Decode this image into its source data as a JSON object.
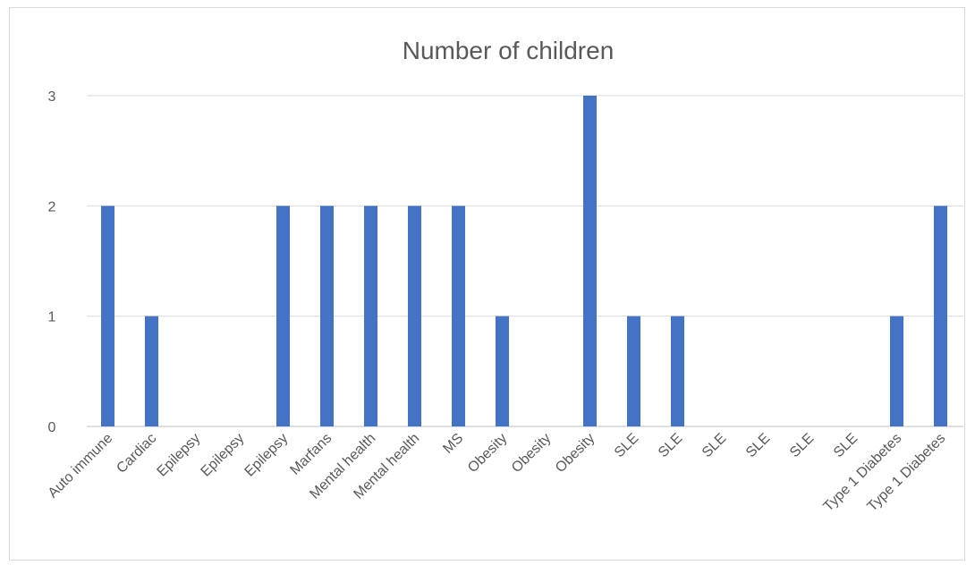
{
  "chart_data": {
    "type": "bar",
    "title": "Number of children",
    "xlabel": "",
    "ylabel": "",
    "categories": [
      "Auto immune",
      "Cardiac",
      "Epilepsy",
      "Epilepsy",
      "Epilepsy",
      "Marfans",
      "Mental health",
      "Mental health",
      "MS",
      "Obesity",
      "Obesity",
      "Obesity",
      "SLE",
      "SLE",
      "SLE",
      "SLE",
      "SLE",
      "SLE",
      "Type 1 Diabetes",
      "Type 1 Diabetes"
    ],
    "values": [
      2,
      1,
      0,
      0,
      2,
      2,
      2,
      2,
      2,
      1,
      0,
      3,
      1,
      1,
      0,
      0,
      0,
      0,
      1,
      2
    ],
    "ylim": [
      0,
      3
    ],
    "yticks": [
      "0",
      "1",
      "2",
      "3"
    ],
    "grid": true,
    "legend": "none",
    "colors": {
      "bar": "#4472c4",
      "grid": "#d9d9d9",
      "text": "#595959",
      "axis": "#bfbfbf"
    }
  }
}
